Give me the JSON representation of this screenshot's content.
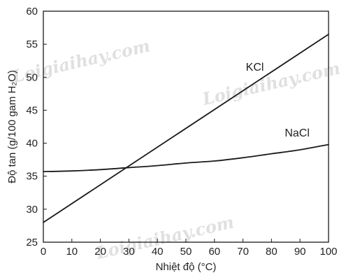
{
  "chart_data": {
    "type": "line",
    "xlabel": "Nhiệt độ (°C)",
    "ylabel": "Độ tan (g/100 gam H₂O)",
    "xlim": [
      0,
      100
    ],
    "ylim": [
      25,
      60
    ],
    "xticks": [
      0,
      10,
      20,
      30,
      40,
      50,
      60,
      70,
      80,
      90,
      100
    ],
    "yticks": [
      25,
      30,
      35,
      40,
      45,
      50,
      55,
      60
    ],
    "grid": false,
    "series": [
      {
        "name": "KCl",
        "color": "#1a1a1a",
        "x": [
          0,
          100
        ],
        "y": [
          28.0,
          56.5
        ]
      },
      {
        "name": "NaCl",
        "color": "#1a1a1a",
        "x": [
          0,
          10,
          20,
          30,
          40,
          50,
          60,
          70,
          80,
          90,
          100
        ],
        "y": [
          35.7,
          35.8,
          36.0,
          36.3,
          36.6,
          37.0,
          37.3,
          37.8,
          38.4,
          39.0,
          39.8
        ]
      }
    ]
  },
  "watermark": "Loigiaihay.com"
}
